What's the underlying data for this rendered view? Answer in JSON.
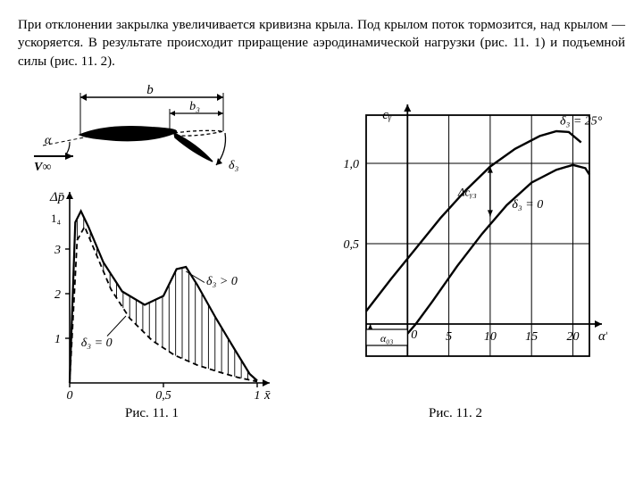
{
  "paragraph": "При отклонении закрылка увеличивается кривизна крыла. Под крылом поток тормозится, над крылом — ускоряется. В результате происходит приращение аэродинамической нагрузки (рис. 11. 1) и подъемной силы (рис. 11. 2).",
  "fig1_caption": "Рис. 11. 1",
  "fig2_caption": "Рис. 11. 2",
  "colors": {
    "stroke": "#000000",
    "bg": "#ffffff"
  },
  "fig1": {
    "airfoil": {
      "label_b": "b",
      "label_b3": "b₃",
      "label_alpha": "α",
      "label_Vinf": "V∞",
      "label_delta3": "δ₃"
    },
    "pressure_plot": {
      "ylabel": "Δp̄",
      "xlabel": "x̄",
      "yticks": [
        1,
        2,
        3
      ],
      "ytick_top_raw": "1₄",
      "xticks": [
        0,
        0.5,
        1
      ],
      "label_delta_pos": "δ₃ > 0",
      "label_delta_zero": "δ₃ = 0",
      "curve_solid": [
        [
          0,
          0
        ],
        [
          0.03,
          3.6
        ],
        [
          0.06,
          3.85
        ],
        [
          0.1,
          3.5
        ],
        [
          0.18,
          2.7
        ],
        [
          0.28,
          2.05
        ],
        [
          0.4,
          1.75
        ],
        [
          0.5,
          1.95
        ],
        [
          0.57,
          2.55
        ],
        [
          0.62,
          2.6
        ],
        [
          0.68,
          2.2
        ],
        [
          0.78,
          1.45
        ],
        [
          0.88,
          0.75
        ],
        [
          0.96,
          0.2
        ],
        [
          1.0,
          0.05
        ]
      ],
      "curve_dashed": [
        [
          0,
          0
        ],
        [
          0.04,
          3.2
        ],
        [
          0.08,
          3.5
        ],
        [
          0.14,
          2.9
        ],
        [
          0.22,
          2.1
        ],
        [
          0.32,
          1.45
        ],
        [
          0.44,
          0.95
        ],
        [
          0.56,
          0.62
        ],
        [
          0.68,
          0.4
        ],
        [
          0.8,
          0.24
        ],
        [
          0.9,
          0.12
        ],
        [
          1.0,
          0.03
        ]
      ]
    }
  },
  "fig2": {
    "ylabel": "cᵧ",
    "xlabel": "α°",
    "label_delta25": "δ₃ = 25°",
    "label_delta0": "δ₃ = 0",
    "label_dcy3": "Δcᵧ₃",
    "label_alpha03": "α₀₃",
    "xlim": [
      -5,
      22
    ],
    "ylim": [
      -0.2,
      1.3
    ],
    "xticks": [
      5,
      10,
      15,
      20
    ],
    "yticks": [
      0.5,
      1.0
    ],
    "curve_upper": [
      [
        -5,
        0.08
      ],
      [
        -2,
        0.28
      ],
      [
        1,
        0.47
      ],
      [
        4,
        0.66
      ],
      [
        7,
        0.83
      ],
      [
        10,
        0.98
      ],
      [
        13,
        1.09
      ],
      [
        16,
        1.17
      ],
      [
        18,
        1.2
      ],
      [
        19.5,
        1.195
      ],
      [
        21,
        1.13
      ]
    ],
    "curve_lower": [
      [
        -1,
        -0.12
      ],
      [
        1,
        0.0
      ],
      [
        3,
        0.14
      ],
      [
        6,
        0.36
      ],
      [
        9,
        0.56
      ],
      [
        12,
        0.74
      ],
      [
        15,
        0.88
      ],
      [
        18,
        0.96
      ],
      [
        20,
        0.99
      ],
      [
        21.5,
        0.97
      ],
      [
        22,
        0.93
      ]
    ]
  }
}
